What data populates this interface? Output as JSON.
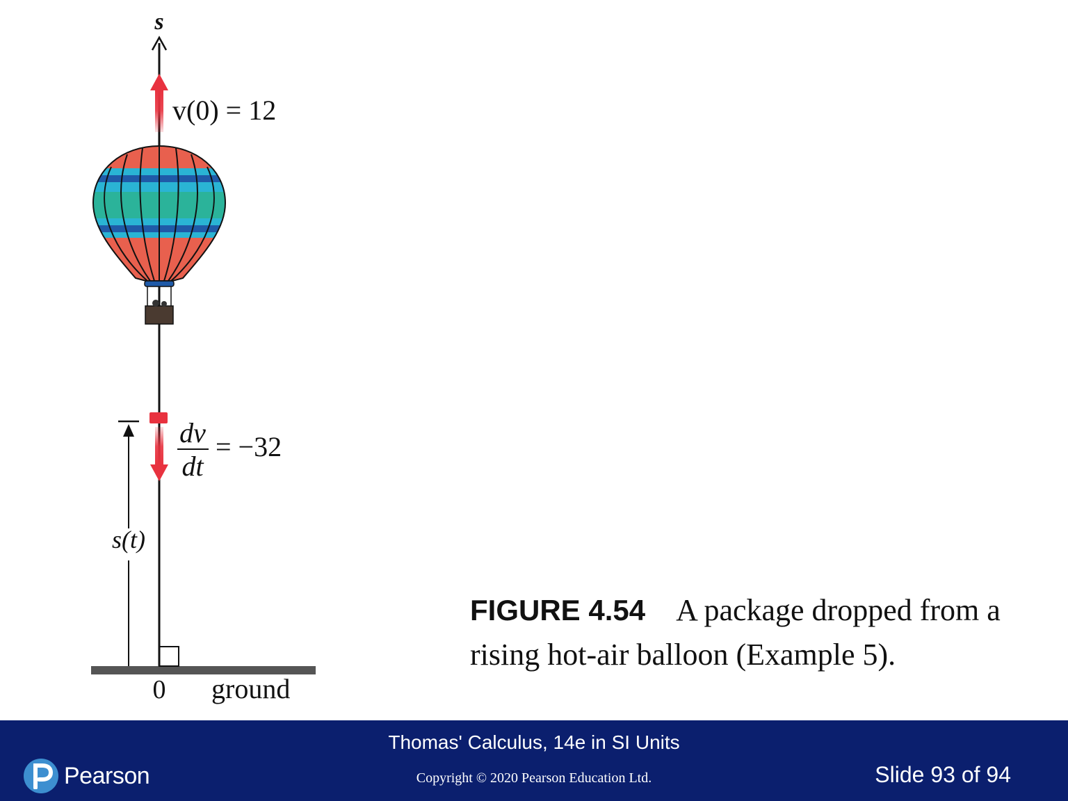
{
  "figure": {
    "axis_label": "s",
    "v0_label": "v(0) = 12",
    "dv_numerator": "dv",
    "dt_denominator": "dt",
    "accel_value": "= −32",
    "height_label": "s(t)",
    "zero_label": "0",
    "ground_label": "ground",
    "colors": {
      "arrow": "#e8323f",
      "stripe_red": "#e8604e",
      "stripe_teal": "#2bb39a",
      "stripe_cyan": "#2ab4d4",
      "stripe_blue": "#1f5aa8",
      "ground": "#555555"
    }
  },
  "caption": {
    "figure_number": "FIGURE 4.54",
    "text": "A package dropped from a rising hot-air balloon (Example 5)."
  },
  "footer": {
    "book_title": "Thomas' Calculus, 14e in SI Units",
    "copyright": "Copyright © 2020 Pearson Education Ltd.",
    "slide_number": "Slide 93 of 94",
    "logo_text": "Pearson",
    "logo_icon": "pearson-p-icon",
    "background_color": "#0b1f6e"
  }
}
